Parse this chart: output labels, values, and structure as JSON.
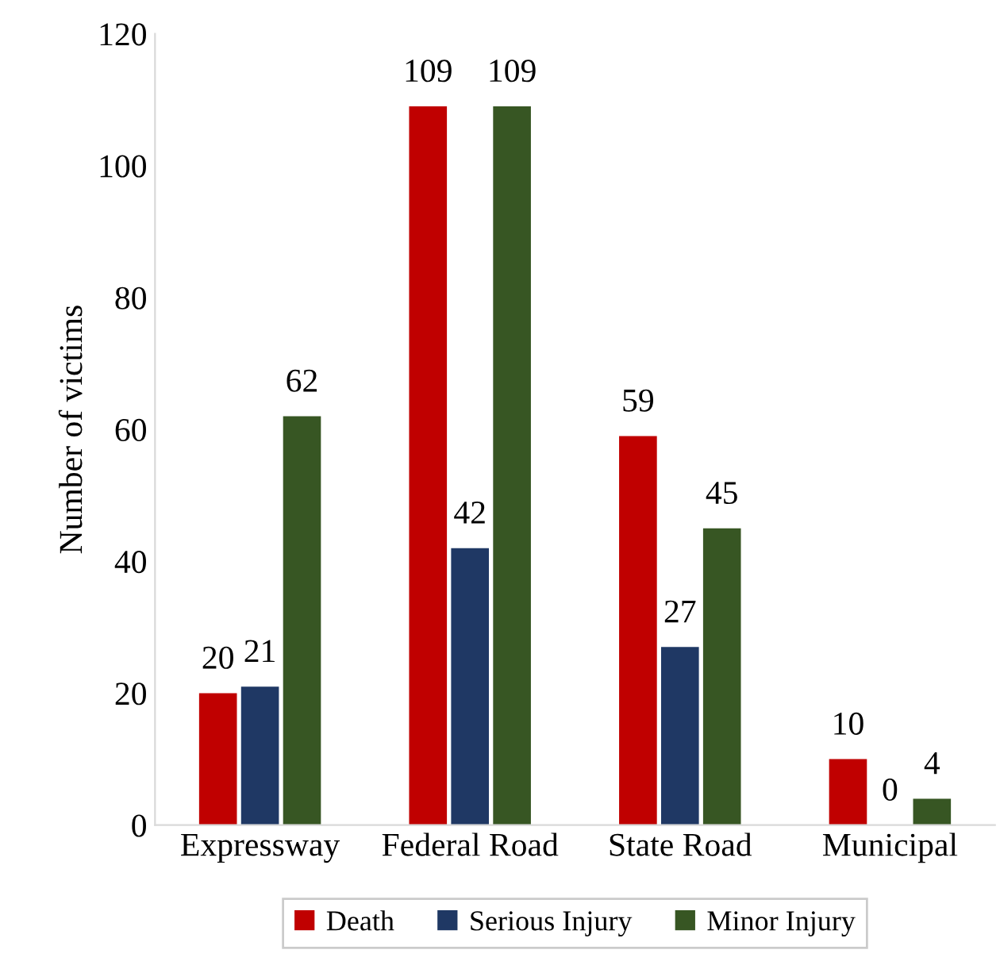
{
  "chart_data": {
    "type": "bar",
    "ylabel": "Number of victims",
    "categories": [
      "Expressway",
      "Federal Road",
      "State Road",
      "Municipal"
    ],
    "series": [
      {
        "name": "Death",
        "color": "#c00000",
        "values": [
          20,
          109,
          59,
          10
        ]
      },
      {
        "name": "Serious Injury",
        "color": "#1f3864",
        "values": [
          21,
          42,
          27,
          0
        ]
      },
      {
        "name": "Minor Injury",
        "color": "#375623",
        "values": [
          62,
          109,
          45,
          4
        ]
      }
    ],
    "ylim": [
      0,
      120
    ],
    "yticks": [
      0,
      20,
      40,
      60,
      80,
      100,
      120
    ],
    "grid": false,
    "legend": "bottom",
    "data_labels": true
  }
}
